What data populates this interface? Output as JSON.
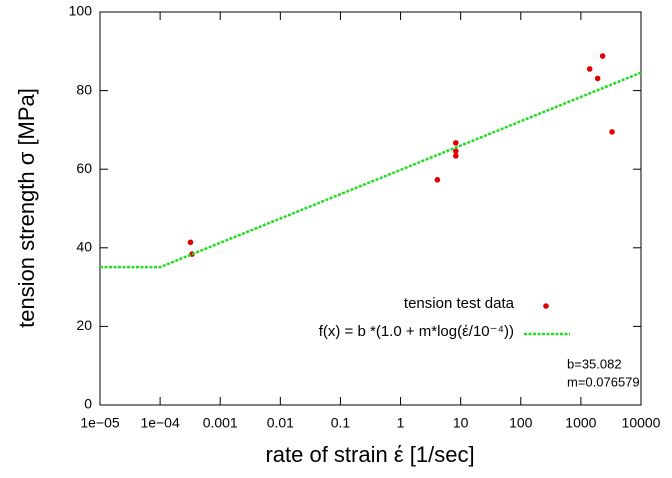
{
  "chart_data": {
    "type": "scatter",
    "x_label": "rate of strain έ  [1/sec]",
    "y_label": "tension strength σ [MPa]",
    "annotations": [
      "b=35.082",
      "m=0.076579"
    ],
    "xscale": "log",
    "xlim": [
      1e-05,
      10000
    ],
    "ylim": [
      0,
      100
    ],
    "xticks": [
      {
        "value": 1e-05,
        "label": "1e−05"
      },
      {
        "value": 0.0001,
        "label": "1e−04"
      },
      0.001,
      0.01,
      0.1,
      1,
      10,
      100,
      1000,
      10000
    ],
    "yticks": [
      0,
      20,
      40,
      60,
      80,
      100
    ],
    "legend": "bottom-right",
    "series": [
      {
        "name": "tension test data",
        "kind": "points",
        "color": "#e00000",
        "x": [
          0.00032,
          0.00034,
          4.1,
          8.3,
          8.3,
          8.3,
          1400,
          1900,
          2300,
          3300
        ],
        "values": [
          41.4,
          38.4,
          57.3,
          66.7,
          64.6,
          63.4,
          85.5,
          83.1,
          88.8,
          69.5
        ]
      },
      {
        "name": "f(x) = b *(1.0 + m*log(έ/10⁻⁴))",
        "kind": "line",
        "color": "#22dd22",
        "x": [
          1e-05,
          0.0001,
          10000
        ],
        "values": [
          35.08,
          35.08,
          84.57
        ]
      }
    ]
  }
}
